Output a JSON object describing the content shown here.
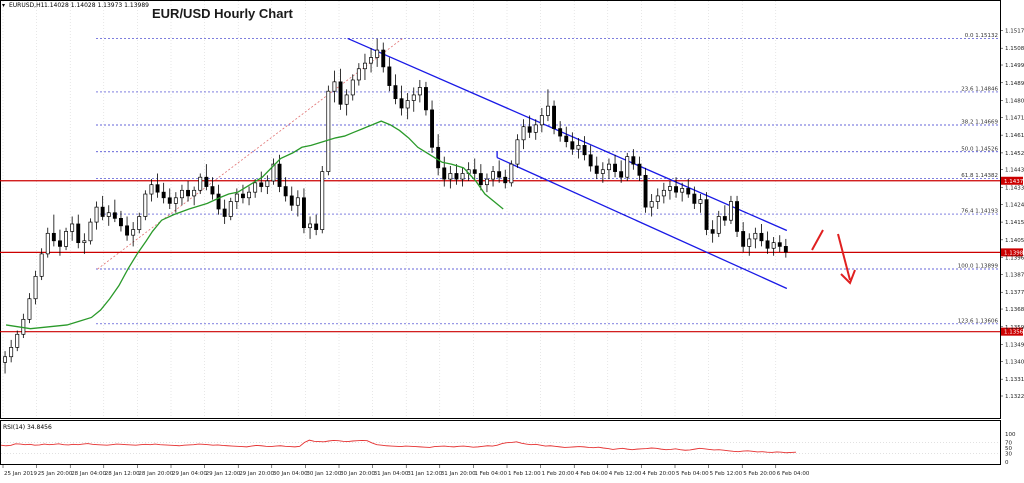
{
  "chart_data": {
    "type": "candlestick",
    "symbol_label": "EURUSD,H1",
    "ohlc_label": "1.14028 1.14028 1.13973 1.13989",
    "title": "EUR/USD Hourly Chart",
    "ylim": [
      1.1322,
      1.1522
    ],
    "y_ticks": [
      "1.15175",
      "1.15080",
      "1.14990",
      "1.14895",
      "1.14800",
      "1.14710",
      "1.14615",
      "1.14520",
      "1.14430",
      "1.14335",
      "1.14245",
      "1.14150",
      "1.14055",
      "1.13960",
      "1.13870",
      "1.13775",
      "1.13685",
      "1.13590",
      "1.13495",
      "1.13405",
      "1.13310",
      "1.13220"
    ],
    "x_ticks": [
      "25 Jan 2019",
      "25 Jan 20:00",
      "28 Jan 04:00",
      "28 Jan 12:00",
      "28 Jan 20:00",
      "29 Jan 04:00",
      "29 Jan 12:00",
      "29 Jan 20:00",
      "30 Jan 04:00",
      "30 Jan 12:00",
      "30 Jan 20:00",
      "31 Jan 04:00",
      "31 Jan 12:00",
      "31 Jan 20:00",
      "1 Feb 04:00",
      "1 Feb 12:00",
      "1 Feb 20:00",
      "4 Feb 04:00",
      "4 Feb 12:00",
      "4 Feb 20:00",
      "5 Feb 04:00",
      "5 Feb 12:00",
      "5 Feb 20:00",
      "6 Feb 04:00"
    ],
    "fib_levels": [
      {
        "label": "0.0 1.15132",
        "price": 1.15132
      },
      {
        "label": "23.6 1.14846",
        "price": 1.14846
      },
      {
        "label": "38.2 1.14669",
        "price": 1.14669
      },
      {
        "label": "50.0 1.14526",
        "price": 1.14526
      },
      {
        "label": "61.8 1.14382",
        "price": 1.14382
      },
      {
        "label": "76.4 1.14193",
        "price": 1.14193
      },
      {
        "label": "100.0 1.13899",
        "price": 1.13899
      },
      {
        "label": "123.6 1.13606",
        "price": 1.13606
      }
    ],
    "horizontal_levels": [
      {
        "label": "1.14371",
        "price": 1.14371
      },
      {
        "label": "1.13988",
        "price": 1.13988
      },
      {
        "label": "1.13564",
        "price": 1.13564
      }
    ],
    "channel": {
      "upper": [
        {
          "x": 56.5,
          "price": 1.15132
        },
        {
          "x": 128.5,
          "price": 1.14105
        }
      ],
      "lower": [
        {
          "x": 81,
          "price": 1.14495
        },
        {
          "x": 128.5,
          "price": 1.13795
        }
      ]
    },
    "candles": [
      [
        1.134,
        1.1346,
        1.1334,
        1.1343
      ],
      [
        1.1343,
        1.1352,
        1.134,
        1.1348
      ],
      [
        1.1348,
        1.1357,
        1.1346,
        1.1355
      ],
      [
        1.1355,
        1.1366,
        1.1353,
        1.1363
      ],
      [
        1.1363,
        1.1377,
        1.1361,
        1.1374
      ],
      [
        1.1374,
        1.1389,
        1.1371,
        1.1386
      ],
      [
        1.1386,
        1.1401,
        1.1384,
        1.1398
      ],
      [
        1.1398,
        1.1412,
        1.1396,
        1.1409
      ],
      [
        1.1409,
        1.1419,
        1.1402,
        1.1405
      ],
      [
        1.1405,
        1.1411,
        1.1397,
        1.1402
      ],
      [
        1.1402,
        1.1412,
        1.14,
        1.141
      ],
      [
        1.141,
        1.1418,
        1.1405,
        1.1414
      ],
      [
        1.1414,
        1.1419,
        1.1401,
        1.1404
      ],
      [
        1.1404,
        1.1409,
        1.1398,
        1.1405
      ],
      [
        1.1405,
        1.1417,
        1.1403,
        1.1415
      ],
      [
        1.1415,
        1.1426,
        1.1411,
        1.1423
      ],
      [
        1.1423,
        1.1429,
        1.1416,
        1.1418
      ],
      [
        1.1418,
        1.1424,
        1.1413,
        1.142
      ],
      [
        1.142,
        1.1427,
        1.1415,
        1.1417
      ],
      [
        1.1417,
        1.1421,
        1.141,
        1.1413
      ],
      [
        1.1413,
        1.1418,
        1.1405,
        1.1408
      ],
      [
        1.1408,
        1.1415,
        1.1402,
        1.1411
      ],
      [
        1.1411,
        1.142,
        1.1409,
        1.1418
      ],
      [
        1.1418,
        1.1432,
        1.1416,
        1.143
      ],
      [
        1.143,
        1.1438,
        1.1426,
        1.1435
      ],
      [
        1.1435,
        1.1441,
        1.1428,
        1.1431
      ],
      [
        1.1431,
        1.1436,
        1.1425,
        1.1428
      ],
      [
        1.1428,
        1.1433,
        1.1422,
        1.1425
      ],
      [
        1.1425,
        1.1431,
        1.142,
        1.1428
      ],
      [
        1.1428,
        1.1435,
        1.1424,
        1.1432
      ],
      [
        1.1432,
        1.1437,
        1.1426,
        1.1429
      ],
      [
        1.1429,
        1.1434,
        1.1424,
        1.1432
      ],
      [
        1.1432,
        1.1441,
        1.143,
        1.1439
      ],
      [
        1.1439,
        1.1446,
        1.1432,
        1.1434
      ],
      [
        1.1434,
        1.1439,
        1.1427,
        1.143
      ],
      [
        1.143,
        1.1435,
        1.1419,
        1.1422
      ],
      [
        1.1422,
        1.1427,
        1.1414,
        1.1418
      ],
      [
        1.1418,
        1.1428,
        1.1416,
        1.1426
      ],
      [
        1.1426,
        1.1433,
        1.1422,
        1.143
      ],
      [
        1.143,
        1.1435,
        1.1425,
        1.1428
      ],
      [
        1.1428,
        1.1434,
        1.1424,
        1.1431
      ],
      [
        1.1431,
        1.1438,
        1.1428,
        1.1436
      ],
      [
        1.1436,
        1.1442,
        1.1431,
        1.1434
      ],
      [
        1.1434,
        1.144,
        1.143,
        1.1437
      ],
      [
        1.1437,
        1.1449,
        1.1435,
        1.1446
      ],
      [
        1.1446,
        1.1451,
        1.1431,
        1.1434
      ],
      [
        1.1434,
        1.1439,
        1.1426,
        1.1429
      ],
      [
        1.1429,
        1.1434,
        1.1421,
        1.1424
      ],
      [
        1.1424,
        1.1432,
        1.1418,
        1.1428
      ],
      [
        1.1428,
        1.1433,
        1.1409,
        1.1412
      ],
      [
        1.1412,
        1.1418,
        1.1406,
        1.1414
      ],
      [
        1.1414,
        1.1419,
        1.1408,
        1.1411
      ],
      [
        1.1411,
        1.1445,
        1.1409,
        1.1442
      ],
      [
        1.1442,
        1.1488,
        1.144,
        1.1485
      ],
      [
        1.1485,
        1.1496,
        1.1479,
        1.149
      ],
      [
        1.149,
        1.1497,
        1.1475,
        1.1478
      ],
      [
        1.1478,
        1.1486,
        1.1472,
        1.1483
      ],
      [
        1.1483,
        1.1494,
        1.148,
        1.1491
      ],
      [
        1.1491,
        1.15,
        1.1488,
        1.1497
      ],
      [
        1.1497,
        1.1505,
        1.1491,
        1.15
      ],
      [
        1.15,
        1.1508,
        1.1495,
        1.1503
      ],
      [
        1.1503,
        1.1513,
        1.1498,
        1.1507
      ],
      [
        1.1507,
        1.1511,
        1.1495,
        1.1498
      ],
      [
        1.1498,
        1.1503,
        1.1485,
        1.1488
      ],
      [
        1.1488,
        1.1494,
        1.1478,
        1.1481
      ],
      [
        1.1481,
        1.1488,
        1.1472,
        1.1476
      ],
      [
        1.1476,
        1.1484,
        1.147,
        1.148
      ],
      [
        1.148,
        1.1487,
        1.1474,
        1.1483
      ],
      [
        1.1483,
        1.1491,
        1.1479,
        1.1487
      ],
      [
        1.1487,
        1.149,
        1.1472,
        1.1475
      ],
      [
        1.1475,
        1.148,
        1.1452,
        1.1455
      ],
      [
        1.1455,
        1.1462,
        1.144,
        1.1444
      ],
      [
        1.1444,
        1.145,
        1.1434,
        1.1438
      ],
      [
        1.1438,
        1.1445,
        1.1433,
        1.1441
      ],
      [
        1.1441,
        1.1446,
        1.1435,
        1.1438
      ],
      [
        1.1438,
        1.1444,
        1.1434,
        1.1441
      ],
      [
        1.1441,
        1.1447,
        1.1437,
        1.1443
      ],
      [
        1.1443,
        1.1449,
        1.1438,
        1.1441
      ],
      [
        1.1441,
        1.1446,
        1.1432,
        1.1435
      ],
      [
        1.1435,
        1.1441,
        1.1431,
        1.1438
      ],
      [
        1.1438,
        1.1445,
        1.1434,
        1.1442
      ],
      [
        1.1442,
        1.1448,
        1.1436,
        1.1439
      ],
      [
        1.1439,
        1.1443,
        1.1433,
        1.1436
      ],
      [
        1.1436,
        1.1448,
        1.1434,
        1.1446
      ],
      [
        1.1446,
        1.1462,
        1.1444,
        1.1459
      ],
      [
        1.1459,
        1.147,
        1.1454,
        1.1466
      ],
      [
        1.1466,
        1.1472,
        1.146,
        1.1463
      ],
      [
        1.1463,
        1.147,
        1.1459,
        1.1467
      ],
      [
        1.1467,
        1.1476,
        1.1463,
        1.1472
      ],
      [
        1.1472,
        1.1486,
        1.1469,
        1.1477
      ],
      [
        1.1477,
        1.148,
        1.1462,
        1.1465
      ],
      [
        1.1465,
        1.1469,
        1.1458,
        1.1461
      ],
      [
        1.1461,
        1.1466,
        1.1455,
        1.1458
      ],
      [
        1.1458,
        1.1463,
        1.1451,
        1.1454
      ],
      [
        1.1454,
        1.146,
        1.1449,
        1.1456
      ],
      [
        1.1456,
        1.1461,
        1.1448,
        1.1451
      ],
      [
        1.1451,
        1.1456,
        1.1442,
        1.1445
      ],
      [
        1.1445,
        1.145,
        1.1438,
        1.1441
      ],
      [
        1.1441,
        1.1447,
        1.1436,
        1.1443
      ],
      [
        1.1443,
        1.1449,
        1.1438,
        1.1446
      ],
      [
        1.1446,
        1.1451,
        1.1439,
        1.1442
      ],
      [
        1.1442,
        1.1448,
        1.1436,
        1.1439
      ],
      [
        1.1439,
        1.1452,
        1.1437,
        1.145
      ],
      [
        1.145,
        1.1454,
        1.1443,
        1.1446
      ],
      [
        1.1446,
        1.145,
        1.1437,
        1.144
      ],
      [
        1.144,
        1.1444,
        1.142,
        1.1423
      ],
      [
        1.1423,
        1.143,
        1.1418,
        1.1426
      ],
      [
        1.1426,
        1.1433,
        1.1422,
        1.1429
      ],
      [
        1.1429,
        1.1436,
        1.1425,
        1.1432
      ],
      [
        1.1432,
        1.1437,
        1.1427,
        1.1434
      ],
      [
        1.1434,
        1.1439,
        1.1428,
        1.1431
      ],
      [
        1.1431,
        1.1436,
        1.1426,
        1.1433
      ],
      [
        1.1433,
        1.1438,
        1.1428,
        1.143
      ],
      [
        1.143,
        1.1434,
        1.1422,
        1.1425
      ],
      [
        1.1425,
        1.143,
        1.142,
        1.1427
      ],
      [
        1.1427,
        1.1431,
        1.1408,
        1.1411
      ],
      [
        1.1411,
        1.1416,
        1.1404,
        1.1409
      ],
      [
        1.1409,
        1.1421,
        1.1407,
        1.1418
      ],
      [
        1.1418,
        1.1424,
        1.1413,
        1.1416
      ],
      [
        1.1416,
        1.1429,
        1.1414,
        1.1426
      ],
      [
        1.1426,
        1.1429,
        1.1407,
        1.141
      ],
      [
        1.141,
        1.1415,
        1.1399,
        1.1402
      ],
      [
        1.1402,
        1.1409,
        1.1397,
        1.1406
      ],
      [
        1.1406,
        1.1412,
        1.1401,
        1.1409
      ],
      [
        1.1409,
        1.1414,
        1.1402,
        1.1405
      ],
      [
        1.1405,
        1.141,
        1.1398,
        1.1401
      ],
      [
        1.1401,
        1.1407,
        1.1397,
        1.1404
      ],
      [
        1.1404,
        1.1408,
        1.1399,
        1.1402
      ],
      [
        1.1402,
        1.1406,
        1.1396,
        1.1399
      ]
    ],
    "ma": [
      [
        0,
        1.136
      ],
      [
        2,
        1.1359
      ],
      [
        4,
        1.1358
      ],
      [
        7,
        1.1359
      ],
      [
        10,
        1.136
      ],
      [
        12,
        1.1362
      ],
      [
        14,
        1.1364
      ],
      [
        15.5,
        1.1368
      ],
      [
        17,
        1.1374
      ],
      [
        18.5,
        1.1381
      ],
      [
        20,
        1.139
      ],
      [
        21.5,
        1.1398
      ],
      [
        23,
        1.1405
      ],
      [
        24,
        1.141
      ],
      [
        25.5,
        1.1416
      ],
      [
        27.5,
        1.1419
      ],
      [
        30,
        1.1422
      ],
      [
        33,
        1.1425
      ],
      [
        35,
        1.1428
      ],
      [
        36.5,
        1.143
      ],
      [
        38,
        1.1431
      ],
      [
        40,
        1.1435
      ],
      [
        42,
        1.1439
      ],
      [
        43.5,
        1.1444
      ],
      [
        45,
        1.1449
      ],
      [
        47,
        1.1452
      ],
      [
        48.5,
        1.1455
      ],
      [
        50,
        1.1456
      ],
      [
        52,
        1.1458
      ],
      [
        54,
        1.146
      ],
      [
        55.5,
        1.1461
      ],
      [
        57,
        1.1463
      ],
      [
        58.5,
        1.1465
      ],
      [
        60,
        1.1467
      ],
      [
        61.5,
        1.1469
      ],
      [
        63,
        1.1467
      ],
      [
        64.5,
        1.1464
      ],
      [
        66,
        1.146
      ],
      [
        67.5,
        1.1455
      ],
      [
        69,
        1.1452
      ],
      [
        70.5,
        1.1449
      ],
      [
        71.5,
        1.1447
      ],
      [
        73,
        1.1446
      ],
      [
        75,
        1.1444
      ],
      [
        77,
        1.1437
      ],
      [
        78.5,
        1.143
      ],
      [
        80,
        1.1426
      ],
      [
        81.5,
        1.1422
      ]
    ],
    "rsi": {
      "label": "RSI(14) 34.8456",
      "ylim": [
        0,
        100
      ],
      "levels": [
        "100",
        "70",
        "50",
        "30",
        "0"
      ],
      "level_lines": [
        70,
        30
      ],
      "values": [
        60,
        58,
        59,
        65,
        64,
        62,
        63,
        60,
        61,
        64,
        62,
        63,
        65,
        62,
        61,
        63,
        62,
        64,
        66,
        63,
        62,
        61,
        60,
        62,
        64,
        63,
        62,
        61,
        60,
        62,
        63,
        62,
        64,
        62,
        61,
        60,
        59,
        58,
        60,
        61,
        62,
        64,
        63,
        62,
        60,
        61,
        59,
        58,
        57,
        56,
        55,
        54,
        57,
        59,
        58,
        56,
        55,
        57,
        58,
        56,
        55,
        54,
        56,
        70,
        78,
        74,
        73,
        72,
        75,
        77,
        76,
        74,
        73,
        75,
        76,
        77,
        76,
        68,
        62,
        60,
        58,
        57,
        56,
        55,
        57,
        56,
        55,
        54,
        53,
        52,
        55,
        56,
        57,
        55,
        54,
        56,
        57,
        55,
        53,
        54,
        56,
        58,
        57,
        60,
        66,
        69,
        70,
        72,
        67,
        64,
        62,
        63,
        60,
        57,
        58,
        56,
        54,
        52,
        53,
        54,
        55,
        54,
        52,
        51,
        53,
        50,
        48,
        45,
        47,
        49,
        46,
        44,
        46,
        47,
        48,
        50,
        49,
        46,
        44,
        45,
        47,
        44,
        42,
        43,
        46,
        49,
        47,
        45,
        43,
        44,
        42,
        40,
        38,
        37,
        39,
        40,
        38,
        36,
        37,
        35,
        34,
        36,
        35,
        33,
        34,
        35
      ]
    }
  },
  "colors": {
    "candle": "#000000",
    "grid": "#cfcfcf",
    "fib_line": "#3333cc",
    "support_line": "#cc0000",
    "channel": "#1a1ae6",
    "ma": "#2a9a2a",
    "rsi": "#e53030",
    "arrow": "#e02020",
    "fib_trend": "#e07070"
  }
}
